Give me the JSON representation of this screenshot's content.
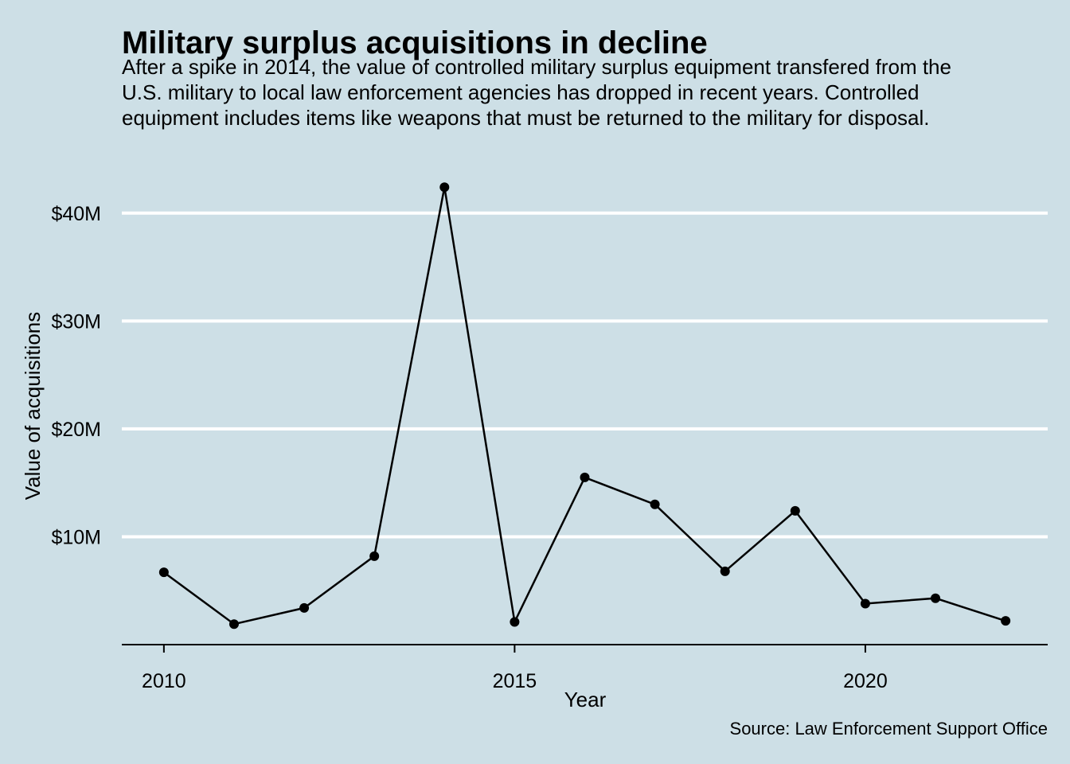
{
  "chart_data": {
    "type": "line",
    "title": "Military surplus acquisitions in decline",
    "subtitle": "After a spike in 2014, the value of controlled military surplus equipment transfered from the U.S. military to local law enforcement agencies has dropped in recent years. Controlled equipment includes items like weapons that must be returned to the military for disposal.",
    "caption": "Source: Law Enforcement Support Office",
    "xlabel": "Year",
    "ylabel": "Value of acquisitions",
    "x": [
      2010,
      2011,
      2012,
      2013,
      2014,
      2015,
      2016,
      2017,
      2018,
      2019,
      2020,
      2021,
      2022
    ],
    "values": [
      6.7,
      1.9,
      3.4,
      8.2,
      42.4,
      2.1,
      15.5,
      13.0,
      6.8,
      12.4,
      3.8,
      4.3,
      2.2
    ],
    "xlim": [
      2009.4,
      2022.6
    ],
    "ylim": [
      0,
      45
    ],
    "x_ticks": [
      2010,
      2015,
      2020
    ],
    "x_tick_labels": [
      "2010",
      "2015",
      "2020"
    ],
    "y_ticks": [
      10,
      20,
      30,
      40
    ],
    "y_tick_labels": [
      "$10M",
      "$20M",
      "$30M",
      "$40M"
    ],
    "grid": "horizontal",
    "colors": {
      "background": "#cddfe6",
      "line": "#000000",
      "grid": "#ffffff"
    }
  }
}
